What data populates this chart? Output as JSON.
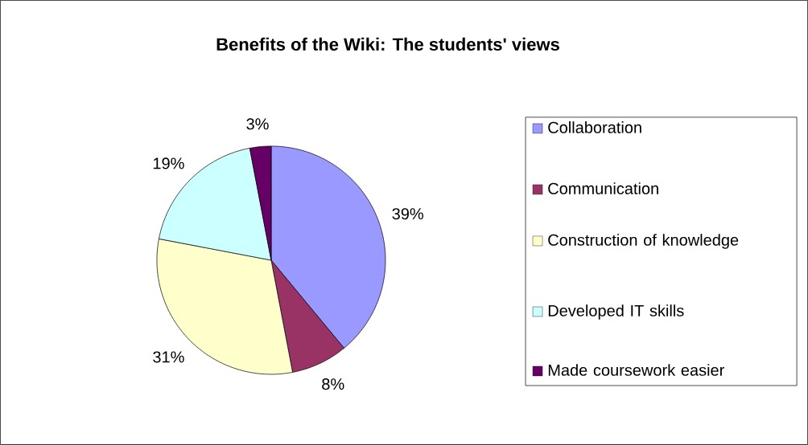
{
  "chart_data": {
    "type": "pie",
    "title": "Benefits of the Wiki: The students' views",
    "categories": [
      "Collaboration",
      "Communication",
      "Construction of knowledge",
      "Developed IT skills",
      "Made coursework easier"
    ],
    "values": [
      39,
      8,
      31,
      19,
      3
    ],
    "colors": [
      "#9999ff",
      "#993366",
      "#ffffcc",
      "#ccffff",
      "#660066"
    ],
    "value_labels": [
      "39%",
      "8%",
      "31%",
      "19%",
      "3%"
    ],
    "legend": "right"
  }
}
